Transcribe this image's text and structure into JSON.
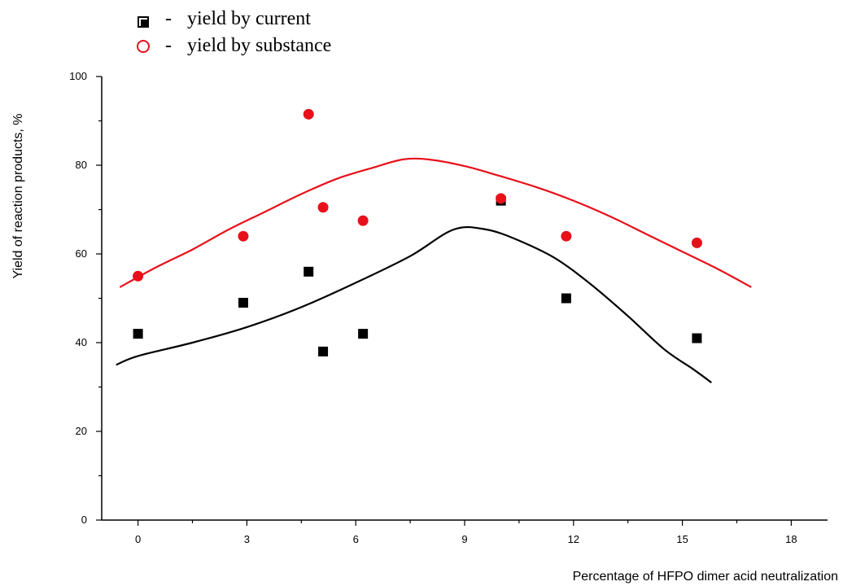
{
  "chart_data": {
    "type": "scatter",
    "xlabel": "Percentage of HFPO dimer acid neutralization",
    "ylabel": "Yield of reaction products, %",
    "xlim": [
      -1,
      19
    ],
    "ylim": [
      0,
      100
    ],
    "x_ticks": [
      0,
      3,
      6,
      9,
      12,
      15,
      18
    ],
    "y_ticks": [
      0,
      20,
      40,
      60,
      80,
      100
    ],
    "legend_position": "top-left",
    "series": [
      {
        "name": "yield by current",
        "legend_symbol": "■",
        "legend_dash": "-",
        "color": "#000000",
        "marker": "square",
        "points": [
          {
            "x": 0.0,
            "y": 42
          },
          {
            "x": 2.9,
            "y": 49
          },
          {
            "x": 4.7,
            "y": 56
          },
          {
            "x": 5.1,
            "y": 38
          },
          {
            "x": 6.2,
            "y": 42
          },
          {
            "x": 10.0,
            "y": 72
          },
          {
            "x": 11.8,
            "y": 50
          },
          {
            "x": 15.4,
            "y": 41
          }
        ],
        "curve": [
          {
            "x": -0.6,
            "y": 35
          },
          {
            "x": 0.0,
            "y": 37
          },
          {
            "x": 1.5,
            "y": 40
          },
          {
            "x": 3.0,
            "y": 43.5
          },
          {
            "x": 4.5,
            "y": 48
          },
          {
            "x": 6.0,
            "y": 53.5
          },
          {
            "x": 7.5,
            "y": 59.5
          },
          {
            "x": 8.7,
            "y": 65.5
          },
          {
            "x": 9.6,
            "y": 65.5
          },
          {
            "x": 10.5,
            "y": 63
          },
          {
            "x": 11.5,
            "y": 59
          },
          {
            "x": 12.5,
            "y": 53
          },
          {
            "x": 13.5,
            "y": 46
          },
          {
            "x": 14.5,
            "y": 38.5
          },
          {
            "x": 15.3,
            "y": 34
          },
          {
            "x": 15.8,
            "y": 31
          }
        ]
      },
      {
        "name": "yield by substance",
        "legend_symbol": "O",
        "legend_dash": "-",
        "color": "#e8101a",
        "marker": "circle",
        "points": [
          {
            "x": 0.0,
            "y": 55
          },
          {
            "x": 2.9,
            "y": 64
          },
          {
            "x": 4.7,
            "y": 91.5
          },
          {
            "x": 5.1,
            "y": 70.5
          },
          {
            "x": 6.2,
            "y": 67.5
          },
          {
            "x": 10.0,
            "y": 72.5
          },
          {
            "x": 11.8,
            "y": 64
          },
          {
            "x": 15.4,
            "y": 62.5
          }
        ],
        "curve": [
          {
            "x": -0.5,
            "y": 52.5
          },
          {
            "x": 0.5,
            "y": 57
          },
          {
            "x": 1.5,
            "y": 61
          },
          {
            "x": 2.5,
            "y": 65.5
          },
          {
            "x": 3.5,
            "y": 69.5
          },
          {
            "x": 4.5,
            "y": 73.5
          },
          {
            "x": 5.5,
            "y": 77
          },
          {
            "x": 6.5,
            "y": 79.5
          },
          {
            "x": 7.3,
            "y": 81.3
          },
          {
            "x": 8.0,
            "y": 81.3
          },
          {
            "x": 9.0,
            "y": 79.8
          },
          {
            "x": 10.0,
            "y": 77.5
          },
          {
            "x": 11.0,
            "y": 75
          },
          {
            "x": 12.0,
            "y": 72
          },
          {
            "x": 13.0,
            "y": 68.5
          },
          {
            "x": 14.0,
            "y": 64.5
          },
          {
            "x": 15.0,
            "y": 60.5
          },
          {
            "x": 16.0,
            "y": 56.5
          },
          {
            "x": 16.9,
            "y": 52.5
          }
        ]
      }
    ]
  }
}
